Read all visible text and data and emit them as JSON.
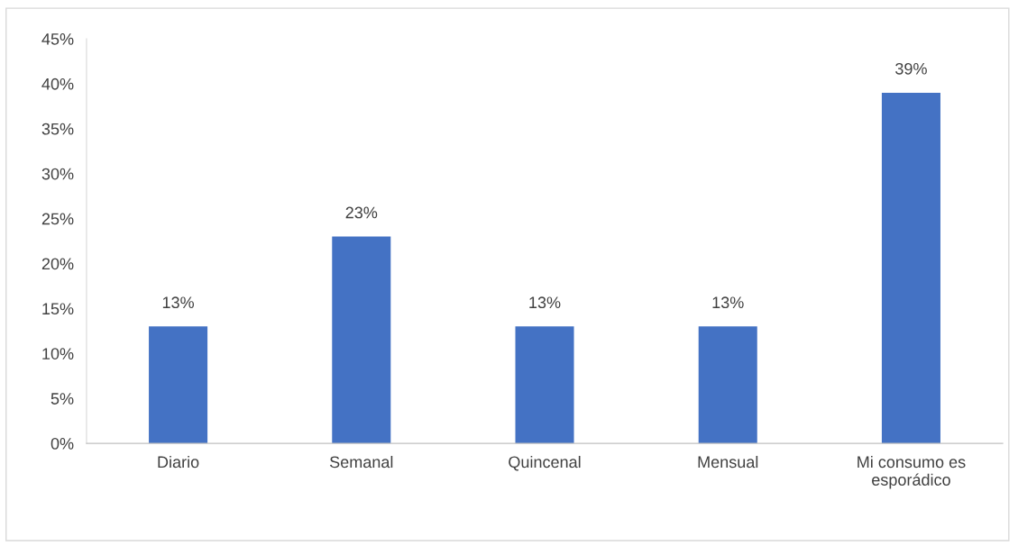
{
  "chart_data": {
    "type": "bar",
    "categories": [
      "Diario",
      "Semanal",
      "Quincenal",
      "Mensual",
      "Mi consumo es\nesporádico"
    ],
    "values": [
      13,
      23,
      13,
      13,
      39
    ],
    "color": "#4472c4",
    "ylim": [
      0,
      45
    ],
    "yticks": [
      {
        "value": 0,
        "label": "0%"
      },
      {
        "value": 5,
        "label": "5%"
      },
      {
        "value": 10,
        "label": "10%"
      },
      {
        "value": 15,
        "label": "15%"
      },
      {
        "value": 20,
        "label": "20%"
      },
      {
        "value": 25,
        "label": "25%"
      },
      {
        "value": 30,
        "label": "30%"
      },
      {
        "value": 35,
        "label": "35%"
      },
      {
        "value": 40,
        "label": "40%"
      },
      {
        "value": 45,
        "label": "45%"
      }
    ],
    "value_labels": [
      "13%",
      "23%",
      "13%",
      "13%",
      "39%"
    ],
    "grid": false,
    "legend": false
  }
}
